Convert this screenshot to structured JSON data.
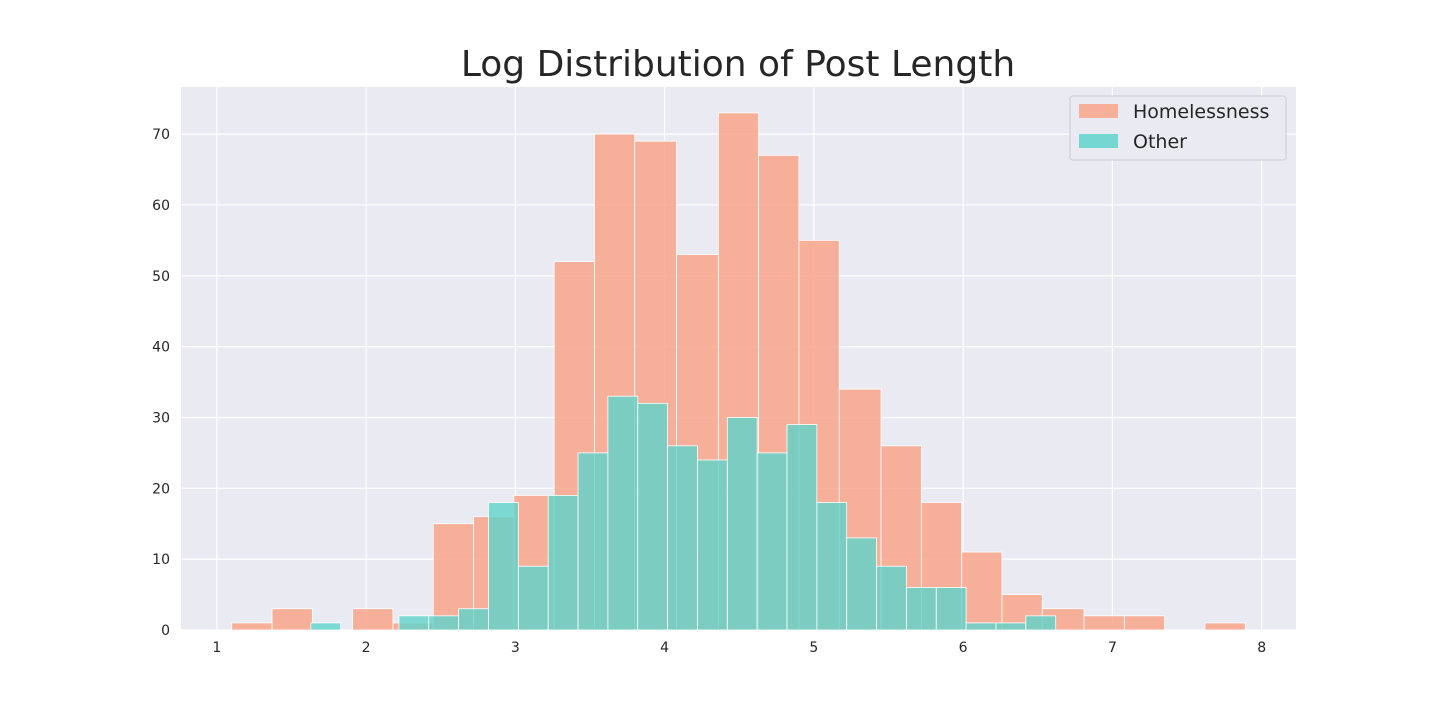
{
  "chart_data": {
    "type": "bar",
    "title": "Log Distribution of Post Length",
    "xlabel": "",
    "ylabel": "",
    "xlim": [
      0.76,
      8.23
    ],
    "ylim": [
      0,
      76.65
    ],
    "xticks": [
      1,
      2,
      3,
      4,
      5,
      6,
      7,
      8
    ],
    "yticks": [
      0,
      10,
      20,
      30,
      40,
      50,
      60,
      70
    ],
    "grid": true,
    "legend_position": "top-right",
    "series": [
      {
        "name": "Homelessness",
        "color": "#f8a58a",
        "bins": [
          {
            "x0": 1.1,
            "x1": 1.37,
            "value": 1
          },
          {
            "x0": 1.37,
            "x1": 1.64,
            "value": 3
          },
          {
            "x0": 1.64,
            "x1": 1.91,
            "value": 0
          },
          {
            "x0": 1.91,
            "x1": 2.18,
            "value": 3
          },
          {
            "x0": 2.18,
            "x1": 2.45,
            "value": 1
          },
          {
            "x0": 2.45,
            "x1": 2.72,
            "value": 15
          },
          {
            "x0": 2.72,
            "x1": 2.99,
            "value": 16
          },
          {
            "x0": 2.99,
            "x1": 3.26,
            "value": 19
          },
          {
            "x0": 3.26,
            "x1": 3.53,
            "value": 52
          },
          {
            "x0": 3.53,
            "x1": 3.8,
            "value": 70
          },
          {
            "x0": 3.8,
            "x1": 4.08,
            "value": 69
          },
          {
            "x0": 4.08,
            "x1": 4.36,
            "value": 53
          },
          {
            "x0": 4.36,
            "x1": 4.63,
            "value": 73
          },
          {
            "x0": 4.63,
            "x1": 4.9,
            "value": 67
          },
          {
            "x0": 4.9,
            "x1": 5.17,
            "value": 55
          },
          {
            "x0": 5.17,
            "x1": 5.45,
            "value": 34
          },
          {
            "x0": 5.45,
            "x1": 5.72,
            "value": 26
          },
          {
            "x0": 5.72,
            "x1": 5.99,
            "value": 18
          },
          {
            "x0": 5.99,
            "x1": 6.26,
            "value": 11
          },
          {
            "x0": 6.26,
            "x1": 6.53,
            "value": 5
          },
          {
            "x0": 6.53,
            "x1": 6.81,
            "value": 3
          },
          {
            "x0": 6.81,
            "x1": 7.08,
            "value": 2
          },
          {
            "x0": 7.08,
            "x1": 7.35,
            "value": 2
          },
          {
            "x0": 7.35,
            "x1": 7.62,
            "value": 0
          },
          {
            "x0": 7.62,
            "x1": 7.89,
            "value": 1
          }
        ]
      },
      {
        "name": "Other",
        "color": "#5fd3cb",
        "bins": [
          {
            "x0": 1.63,
            "x1": 1.83,
            "value": 1
          },
          {
            "x0": 2.22,
            "x1": 2.42,
            "value": 2
          },
          {
            "x0": 2.42,
            "x1": 2.62,
            "value": 2
          },
          {
            "x0": 2.62,
            "x1": 2.82,
            "value": 3
          },
          {
            "x0": 2.82,
            "x1": 3.02,
            "value": 18
          },
          {
            "x0": 3.02,
            "x1": 3.22,
            "value": 9
          },
          {
            "x0": 3.22,
            "x1": 3.42,
            "value": 19
          },
          {
            "x0": 3.42,
            "x1": 3.62,
            "value": 25
          },
          {
            "x0": 3.62,
            "x1": 3.82,
            "value": 33
          },
          {
            "x0": 3.82,
            "x1": 4.02,
            "value": 32
          },
          {
            "x0": 4.02,
            "x1": 4.22,
            "value": 26
          },
          {
            "x0": 4.22,
            "x1": 4.42,
            "value": 24
          },
          {
            "x0": 4.42,
            "x1": 4.62,
            "value": 30
          },
          {
            "x0": 4.62,
            "x1": 4.82,
            "value": 25
          },
          {
            "x0": 4.82,
            "x1": 5.02,
            "value": 29
          },
          {
            "x0": 5.02,
            "x1": 5.22,
            "value": 18
          },
          {
            "x0": 5.22,
            "x1": 5.42,
            "value": 13
          },
          {
            "x0": 5.42,
            "x1": 5.62,
            "value": 9
          },
          {
            "x0": 5.62,
            "x1": 5.82,
            "value": 6
          },
          {
            "x0": 5.82,
            "x1": 6.02,
            "value": 6
          },
          {
            "x0": 6.02,
            "x1": 6.22,
            "value": 1
          },
          {
            "x0": 6.22,
            "x1": 6.42,
            "value": 1
          },
          {
            "x0": 6.42,
            "x1": 6.62,
            "value": 2
          }
        ]
      }
    ]
  }
}
